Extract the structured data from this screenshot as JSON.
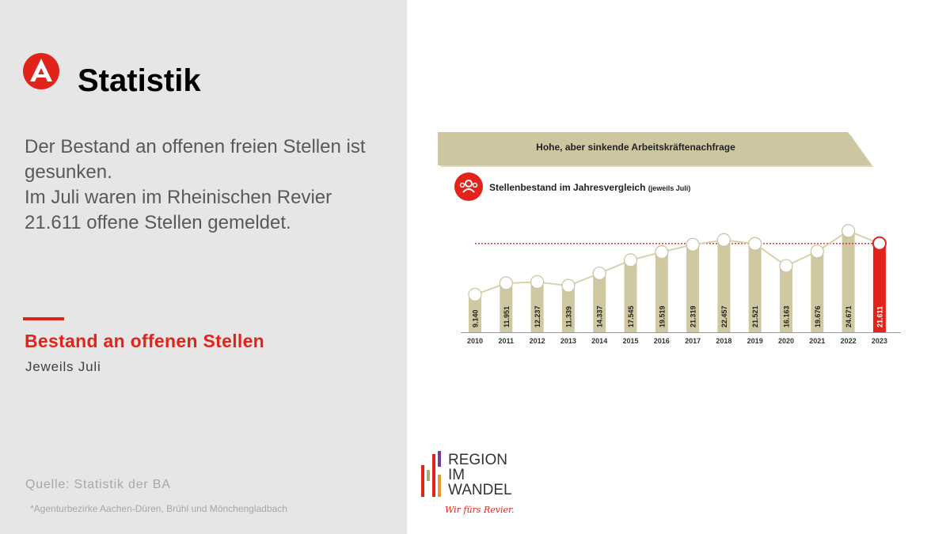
{
  "header": {
    "title": "Statistik"
  },
  "lead": [
    "Der Bestand an offenen freien Stellen ist",
    "gesunken.",
    "Im Juli waren im Rheinischen Revier",
    "21.611 offene Stellen gemeldet."
  ],
  "section": {
    "title": "Bestand an offenen Stellen",
    "subtitle": "Jeweils Juli"
  },
  "source": "Quelle: Statistik der BA",
  "footnote": "*Agenturbezirke Aachen-Düren, Brühl und Mönchengladbach",
  "banner": "Hohe, aber sinkende Arbeitskräftenachfrage",
  "chart_title": {
    "main": "Stellenbestand im Jahresvergleich",
    "suffix": "(jeweils Juli)"
  },
  "region_logo": {
    "lines": [
      "REGION",
      "IM",
      "WANDEL"
    ],
    "slogan": "Wir fürs Revier."
  },
  "colors": {
    "brand_red": "#e2231a",
    "bar": "#cfc8a0",
    "banner": "#cdc6a0",
    "line": "#d9d2ae"
  },
  "chart_data": {
    "type": "bar",
    "categories": [
      "2010",
      "2011",
      "2012",
      "2013",
      "2014",
      "2015",
      "2016",
      "2017",
      "2018",
      "2019",
      "2020",
      "2021",
      "2022",
      "2023"
    ],
    "values": [
      9140,
      11951,
      12237,
      11339,
      14337,
      17545,
      19519,
      21319,
      22457,
      21521,
      16163,
      19676,
      24671,
      21611
    ],
    "labels": [
      "9.140",
      "11.951",
      "12.237",
      "11.339",
      "14.337",
      "17.545",
      "19.519",
      "21.319",
      "22.457",
      "21.521",
      "16.163",
      "19.676",
      "24.671",
      "21.611"
    ],
    "reference_value": 21611,
    "highlight": "2023",
    "ylim": [
      0,
      26000
    ],
    "grid": false
  }
}
